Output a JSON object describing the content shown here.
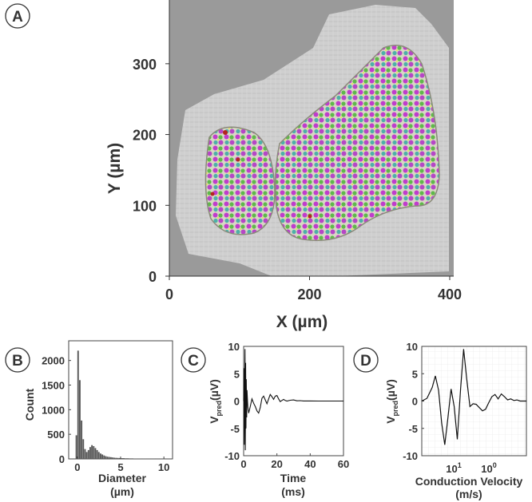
{
  "chart_data": [
    {
      "panel": "A",
      "type": "image",
      "description_label": "A",
      "xlabel": "X (µm)",
      "ylabel": "Y (µm)",
      "xlim": [
        0,
        400
      ],
      "ylim": [
        0,
        390
      ],
      "xticks": [
        0,
        200,
        400
      ],
      "yticks": [
        0,
        100,
        200,
        300
      ]
    },
    {
      "panel": "B",
      "type": "bar",
      "description_label": "B",
      "xlabel_line1": "Diameter",
      "xlabel_line2": "(µm)",
      "ylabel": "Count",
      "xlim": [
        -1,
        11
      ],
      "ylim": [
        0,
        2400
      ],
      "xticks": [
        0,
        5,
        10
      ],
      "yticks": [
        0,
        500,
        1000,
        1500,
        2000
      ],
      "bin_width": 0.2,
      "bins_x": [
        -0.2,
        0.0,
        0.2,
        0.4,
        0.6,
        0.8,
        1.0,
        1.2,
        1.4,
        1.6,
        1.8,
        2.0,
        2.2,
        2.4,
        2.6,
        2.8,
        3.0,
        3.2,
        3.4,
        3.6,
        3.8,
        4.0,
        4.2,
        4.4,
        4.6,
        4.8,
        5.0,
        5.5,
        6.0,
        6.5,
        7.0,
        7.5,
        8.0,
        8.5,
        9.0,
        9.5
      ],
      "values": [
        480,
        2200,
        1600,
        780,
        400,
        200,
        140,
        180,
        240,
        280,
        260,
        220,
        180,
        140,
        110,
        90,
        70,
        55,
        45,
        40,
        35,
        30,
        25,
        22,
        20,
        18,
        15,
        12,
        10,
        8,
        7,
        6,
        5,
        4,
        3,
        3
      ]
    },
    {
      "panel": "C",
      "type": "line",
      "description_label": "C",
      "xlabel_line1": "Time",
      "xlabel_line2": "(ms)",
      "ylabel": "V",
      "ylabel_sub": "pred",
      "ylabel_unit": "(µV)",
      "xlim": [
        0,
        60
      ],
      "ylim": [
        -10,
        10
      ],
      "xticks": [
        0,
        20,
        40,
        60
      ],
      "yticks": [
        -10,
        -5,
        0,
        5,
        10
      ],
      "x": [
        0.0,
        0.2,
        0.4,
        0.6,
        0.8,
        1.0,
        1.2,
        1.4,
        1.6,
        1.8,
        2.0,
        2.5,
        3,
        4,
        5,
        6,
        7,
        8,
        9,
        10,
        11,
        12,
        13,
        14,
        15,
        16,
        17,
        18,
        19,
        20,
        21,
        22,
        23,
        24,
        25,
        26,
        28,
        30,
        32,
        34,
        36,
        40,
        45,
        50,
        55,
        60
      ],
      "y": [
        0,
        6,
        -8,
        3,
        9.5,
        -9,
        7,
        -5,
        4,
        -3,
        2,
        -1,
        -2.2,
        -1,
        0.4,
        -0.4,
        -1,
        -1.8,
        -2.2,
        -1.2,
        0.5,
        0.9,
        0.2,
        -0.5,
        0.4,
        1.2,
        0.8,
        0.3,
        0.9,
        1.0,
        0.4,
        -0.1,
        0.1,
        0.3,
        0.1,
        0.0,
        0.15,
        0.2,
        0.05,
        0.08,
        0.02,
        0.02,
        0,
        0,
        0,
        0
      ]
    },
    {
      "panel": "D",
      "type": "line",
      "description_label": "D",
      "xlabel_line1": "Conduction Velocity",
      "xlabel_line2": "(m/s)",
      "ylabel": "V",
      "ylabel_sub": "pred",
      "ylabel_unit": "(µV)",
      "xscale": "log-reversed",
      "ylim": [
        -10,
        10
      ],
      "yticks": [
        -10,
        -5,
        0,
        5,
        10
      ],
      "xtick_labels": [
        {
          "base": "10",
          "exp": "1"
        },
        {
          "base": "10",
          "exp": "0"
        }
      ],
      "t": [
        0,
        0.05,
        0.1,
        0.13,
        0.16,
        0.19,
        0.22,
        0.25,
        0.28,
        0.31,
        0.34,
        0.37,
        0.4,
        0.43,
        0.46,
        0.49,
        0.52,
        0.55,
        0.58,
        0.61,
        0.64,
        0.67,
        0.7,
        0.73,
        0.76,
        0.79,
        0.82,
        0.85,
        0.88,
        0.91,
        0.94,
        0.97,
        1.0
      ],
      "y": [
        0,
        0.5,
        2.5,
        4.6,
        2,
        -4,
        -8,
        -3,
        2.2,
        -1,
        -7,
        2,
        9.5,
        4,
        -1,
        -0.5,
        -0.6,
        -1.2,
        -1.8,
        -1.5,
        -0.3,
        0.8,
        1.2,
        0.4,
        1.3,
        0.8,
        0.2,
        0.4,
        0.1,
        0.2,
        0.0,
        0.0,
        0.0
      ]
    }
  ]
}
